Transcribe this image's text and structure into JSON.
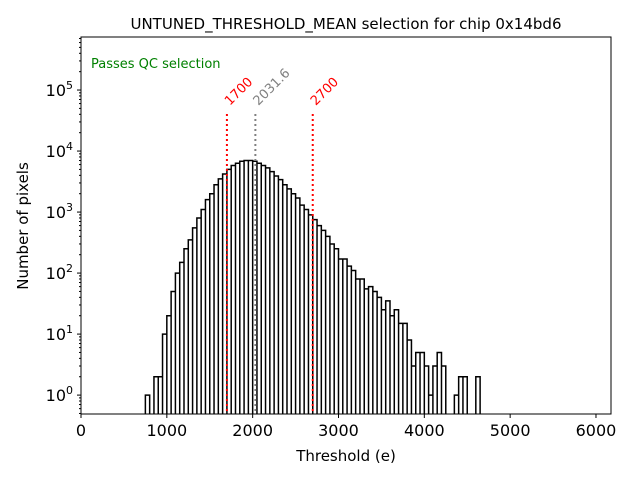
{
  "chart_data": {
    "type": "histogram",
    "title": "UNTUNED_THRESHOLD_MEAN selection for chip 0x14bd6",
    "xlabel": "Threshold (e)",
    "ylabel": "Number of pixels",
    "xlim": [
      0,
      6175
    ],
    "ylim": [
      0.49,
      740000
    ],
    "yscale": "log",
    "xticks": [
      0,
      1000,
      2000,
      3000,
      4000,
      5000,
      6000
    ],
    "xtick_labels": [
      "0",
      "1000",
      "2000",
      "3000",
      "4000",
      "5000",
      "6000"
    ],
    "yticks": [
      1,
      10,
      100,
      1000,
      10000,
      100000
    ],
    "ytick_labels": [
      {
        "base": "10",
        "exp": "0"
      },
      {
        "base": "10",
        "exp": "1"
      },
      {
        "base": "10",
        "exp": "2"
      },
      {
        "base": "10",
        "exp": "3"
      },
      {
        "base": "10",
        "exp": "4"
      },
      {
        "base": "10",
        "exp": "5"
      }
    ],
    "grid": false,
    "bin_start": 750,
    "bin_width": 50,
    "counts": [
      1,
      0,
      2,
      2,
      10,
      20,
      50,
      100,
      150,
      250,
      350,
      550,
      800,
      1100,
      1600,
      2000,
      2800,
      3500,
      4200,
      5000,
      5800,
      6300,
      6800,
      7000,
      7000,
      6800,
      6300,
      5800,
      5300,
      4600,
      3900,
      3400,
      2800,
      2400,
      2000,
      1700,
      1300,
      1100,
      900,
      750,
      600,
      500,
      400,
      300,
      250,
      170,
      170,
      130,
      110,
      80,
      80,
      55,
      60,
      50,
      40,
      25,
      35,
      20,
      25,
      15,
      15,
      8,
      3,
      5,
      5,
      3,
      1,
      3,
      5,
      3,
      0,
      0,
      1,
      2,
      2,
      0,
      0,
      2
    ],
    "lines": [
      {
        "x": 1700,
        "label": "1700",
        "color": "#ff0000"
      },
      {
        "x": 2031.6,
        "label": "2031.6",
        "color": "#808080"
      },
      {
        "x": 2700,
        "label": "2700",
        "color": "#ff0000"
      }
    ],
    "annotation": {
      "text": "Passes QC selection",
      "color": "#008000",
      "position": "top-left"
    }
  }
}
